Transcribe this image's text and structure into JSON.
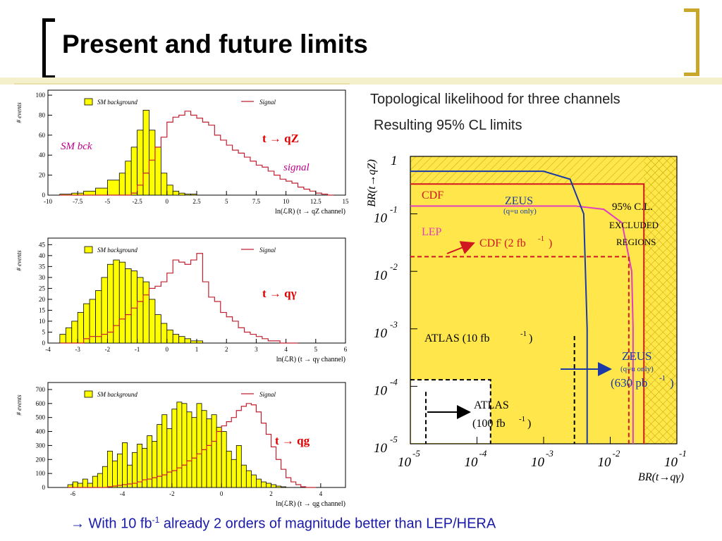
{
  "slide": {
    "title": "Present and future limits",
    "subtitle1": "Topological likelihood for three channels",
    "subtitle2": "Resulting 95% CL limits",
    "footer_arrow": "→",
    "footer_pre": " With 10 fb",
    "footer_sup": "-1",
    "footer_post": " already 2 orders of magnitude better than LEP/HERA"
  },
  "colors": {
    "sm_fill": "#ffff00",
    "sm_line": "#000000",
    "signal_line": "#c02030",
    "channel_label": "#e00000",
    "annotation_magenta": "#c0008a",
    "excl_bg": "#ffe64a",
    "cdf": "#d01820",
    "lep": "#e040c0",
    "zeus": "#1a3aa8",
    "footer": "#1a1aa8",
    "title_gold": "#c8a72a"
  },
  "chart_data": [
    {
      "type": "bar",
      "ylabel": "# events",
      "xlabel_prefix": "ln(",
      "xlabel_L": "ℒ",
      "xlabel_R": "R",
      "xlabel_suffix": ") (t → qZ channel)",
      "legend_sm": "SM background",
      "legend_signal": "Signal",
      "channel_label": "t → qZ",
      "annotation_sm": "SM bck",
      "annotation_signal": "signal",
      "xticks": [
        "-10",
        "-7.5",
        "-5",
        "-2.5",
        "0",
        "2.5",
        "5",
        "7.5",
        "10",
        "12.5",
        "15"
      ],
      "xlim": [
        -10,
        15
      ],
      "yticks": [
        "0",
        "20",
        "40",
        "60",
        "80",
        "100"
      ],
      "ylim": [
        0,
        105
      ],
      "bin_edges": [
        -9,
        -8,
        -7,
        -6,
        -5,
        -4,
        -3.5,
        -3,
        -2.5,
        -2,
        -1.5,
        -1,
        -0.5,
        0,
        0.5,
        1,
        1.5,
        2,
        2.5,
        3,
        3.5,
        4,
        4.5,
        5,
        5.5,
        6,
        6.5,
        7,
        7.5,
        8,
        8.5,
        9,
        9.5,
        10,
        10.5,
        11,
        11.5,
        12,
        12.5,
        13,
        13.5,
        14
      ],
      "sm_values": [
        1,
        2,
        4,
        7,
        15,
        22,
        34,
        48,
        65,
        85,
        65,
        48,
        22,
        10,
        4,
        2,
        1,
        1,
        0,
        0,
        0,
        0,
        0,
        0,
        0,
        0,
        0,
        0,
        0,
        0,
        0,
        0,
        0,
        0,
        0,
        0,
        0,
        0,
        0,
        0,
        0
      ],
      "signal_values": [
        0,
        0,
        0,
        0,
        0,
        0,
        0,
        2,
        10,
        22,
        35,
        48,
        58,
        73,
        78,
        80,
        84,
        80,
        77,
        73,
        70,
        60,
        55,
        50,
        45,
        42,
        38,
        34,
        30,
        28,
        24,
        20,
        16,
        14,
        12,
        8,
        6,
        4,
        2,
        1,
        0
      ]
    },
    {
      "type": "bar",
      "ylabel": "# events",
      "xlabel_prefix": "ln(",
      "xlabel_L": "ℒ",
      "xlabel_R": "R",
      "xlabel_suffix": ") (t → qγ channel)",
      "legend_sm": "SM background",
      "legend_signal": "Signal",
      "channel_label": "t → qγ",
      "xticks": [
        "-4",
        "-3",
        "-2",
        "-1",
        "0",
        "1",
        "2",
        "3",
        "4",
        "5",
        "6"
      ],
      "xlim": [
        -4,
        6
      ],
      "yticks": [
        "0",
        "5",
        "10",
        "15",
        "20",
        "25",
        "30",
        "35",
        "40",
        "45"
      ],
      "ylim": [
        0,
        48
      ],
      "bin_edges": [
        -3.6,
        -3.4,
        -3.2,
        -3,
        -2.8,
        -2.6,
        -2.4,
        -2.2,
        -2,
        -1.8,
        -1.6,
        -1.4,
        -1.2,
        -1,
        -0.8,
        -0.6,
        -0.4,
        -0.2,
        0,
        0.2,
        0.4,
        0.6,
        0.8,
        1,
        1.2,
        1.4,
        1.6,
        1.8,
        2,
        2.2,
        2.4,
        2.6,
        2.8,
        3,
        3.2,
        3.4,
        3.6,
        3.8,
        4,
        4.2,
        4.4
      ],
      "sm_values": [
        4,
        7,
        10,
        14,
        18,
        20,
        24,
        30,
        36,
        38,
        37,
        34,
        33,
        30,
        28,
        20,
        13,
        9,
        6,
        4,
        3,
        2,
        1,
        1,
        0,
        0,
        0,
        0,
        0,
        0,
        0,
        0,
        0,
        0,
        0,
        0,
        0,
        0,
        0,
        0
      ],
      "signal_values": [
        0,
        0,
        0,
        0,
        2,
        3,
        3,
        4,
        5,
        8,
        11,
        13,
        16,
        19,
        22,
        25,
        26,
        28,
        32,
        38,
        37,
        36,
        38,
        41,
        28,
        21,
        19,
        14,
        12,
        10,
        7,
        5,
        4,
        3,
        2,
        1,
        1,
        0,
        0,
        0
      ]
    },
    {
      "type": "bar",
      "ylabel": "# events",
      "xlabel_prefix": "ln(",
      "xlabel_L": "ℒ",
      "xlabel_R": "R",
      "xlabel_suffix": ") (t → qg channel)",
      "legend_sm": "SM background",
      "legend_signal": "Signal",
      "channel_label": "t → qg",
      "xticks": [
        "-6",
        "-4",
        "-2",
        "0",
        "2",
        "4"
      ],
      "xlim": [
        -7,
        5
      ],
      "yticks": [
        "0",
        "100",
        "200",
        "300",
        "400",
        "500",
        "600",
        "700"
      ],
      "ylim": [
        0,
        750
      ],
      "bin_edges": [
        -6.2,
        -6,
        -5.8,
        -5.6,
        -5.4,
        -5.2,
        -5,
        -4.8,
        -4.6,
        -4.4,
        -4.2,
        -4,
        -3.8,
        -3.6,
        -3.4,
        -3.2,
        -3,
        -2.8,
        -2.6,
        -2.4,
        -2.2,
        -2,
        -1.8,
        -1.6,
        -1.4,
        -1.2,
        -1,
        -0.8,
        -0.6,
        -0.4,
        -0.2,
        0,
        0.2,
        0.4,
        0.6,
        0.8,
        1,
        1.2,
        1.4,
        1.6,
        1.8,
        2,
        2.2,
        2.4,
        2.6,
        2.8,
        3,
        3.2,
        3.4,
        3.6,
        3.8
      ],
      "sm_values": [
        20,
        40,
        30,
        60,
        30,
        80,
        100,
        150,
        260,
        190,
        240,
        320,
        160,
        250,
        310,
        280,
        370,
        330,
        450,
        520,
        420,
        560,
        610,
        600,
        540,
        500,
        600,
        550,
        490,
        520,
        430,
        400,
        260,
        200,
        300,
        160,
        120,
        90,
        60,
        40,
        30,
        20,
        10,
        5,
        0,
        0,
        0,
        0,
        0,
        0
      ],
      "signal_values": [
        0,
        0,
        0,
        0,
        0,
        0,
        0,
        0,
        5,
        10,
        15,
        20,
        25,
        30,
        40,
        55,
        60,
        70,
        80,
        90,
        110,
        120,
        140,
        160,
        190,
        210,
        240,
        270,
        300,
        330,
        400,
        440,
        470,
        500,
        550,
        580,
        600,
        590,
        540,
        460,
        380,
        290,
        200,
        130,
        70,
        40,
        20,
        5,
        0,
        0
      ]
    },
    {
      "type": "line",
      "ylabel": "BR(t→qZ)",
      "xlabel": "BR(t→qγ)",
      "xscale": "log",
      "yscale": "log",
      "xlim": [
        1e-05,
        0.1
      ],
      "ylim": [
        1e-05,
        1
      ],
      "xticks": [
        {
          "base": "10",
          "exp": "-5"
        },
        {
          "base": "10",
          "exp": "-4"
        },
        {
          "base": "10",
          "exp": "-3"
        },
        {
          "base": "10",
          "exp": "-2"
        },
        {
          "base": "10",
          "exp": "-1"
        }
      ],
      "yticks": [
        {
          "base": "1",
          "exp": ""
        },
        {
          "base": "10",
          "exp": "-1"
        },
        {
          "base": "10",
          "exp": "-2"
        },
        {
          "base": "10",
          "exp": "-3"
        },
        {
          "base": "10",
          "exp": "-4"
        },
        {
          "base": "10",
          "exp": "-5"
        }
      ],
      "labels": {
        "cdf": "CDF",
        "lep": "LEP",
        "zeus": "ZEUS",
        "zeus_note": "(q=u only)",
        "cdf2": "CDF (2 fb",
        "cdf2_sup": "-1",
        "cdf2_end": ")",
        "excluded1": "95% C.L.",
        "excluded2": "EXCLUDED",
        "excluded3": "REGIONS",
        "atlas10": "ATLAS (10 fb",
        "atlas10_sup": "-1",
        "atlas10_end": ")",
        "atlas100_a": "ATLAS",
        "atlas100_b": "(100 fb",
        "atlas100_sup": "-1",
        "atlas100_end": ")",
        "zeus630_a": "ZEUS",
        "zeus630_note": "(q=u only)",
        "zeus630_b": "(630 pb",
        "zeus630_sup": "-1",
        "zeus630_end": ")"
      },
      "series": [
        {
          "name": "CDF",
          "style": "solid",
          "x": [
            1e-05,
            0.032,
            0.032
          ],
          "y": [
            0.33,
            0.33,
            1e-05
          ]
        },
        {
          "name": "LEP",
          "style": "solid",
          "x": [
            1e-05,
            0.003,
            0.008,
            0.015,
            0.021,
            0.022,
            0.022
          ],
          "y": [
            0.137,
            0.137,
            0.12,
            0.07,
            0.01,
            0.001,
            1e-05
          ]
        },
        {
          "name": "ZEUS",
          "style": "solid",
          "x": [
            1e-05,
            0.001,
            0.0025,
            0.004,
            0.0045,
            0.0045
          ],
          "y": [
            0.55,
            0.55,
            0.4,
            0.1,
            0.001,
            1e-05
          ]
        },
        {
          "name": "CDF (2 fb-1)",
          "style": "dashed",
          "x": [
            1e-05,
            0.019,
            0.019
          ],
          "y": [
            0.018,
            0.018,
            1e-05
          ]
        },
        {
          "name": "ATLAS (10 fb-1)",
          "style": "dashed",
          "x": [
            0.0029,
            0.0029
          ],
          "y": [
            0.00075,
            1e-05
          ]
        },
        {
          "name": "ATLAS (100 fb-1)",
          "style": "dashed",
          "x": [
            1e-05,
            0.00016,
            0.00016
          ],
          "y": [
            0.00013,
            0.00013,
            1e-05
          ]
        }
      ]
    }
  ]
}
